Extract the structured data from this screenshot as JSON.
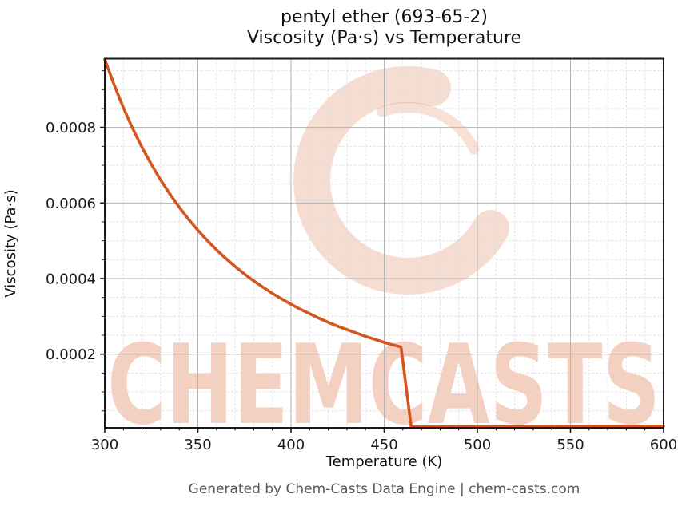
{
  "figure": {
    "title_line1": "pentyl ether (693-65-2)",
    "title_line2": "Viscosity (Pa·s) vs Temperature",
    "footer": "Generated by Chem-Casts Data Engine | chem-casts.com"
  },
  "watermark": {
    "text": "CHEMCASTS",
    "color": "#d4551e"
  },
  "chart_data": {
    "type": "line",
    "title": "pentyl ether (693-65-2) — Viscosity (Pa·s) vs Temperature",
    "xlabel": "Temperature (K)",
    "ylabel": "Viscosity (Pa·s)",
    "xlim": [
      300,
      600
    ],
    "ylim": [
      5e-06,
      0.000982
    ],
    "xticks": [
      300,
      350,
      400,
      450,
      500,
      550,
      600
    ],
    "xtick_labels": [
      "300",
      "350",
      "400",
      "450",
      "500",
      "550",
      "600"
    ],
    "yticks": [
      0.0002,
      0.0004,
      0.0006,
      0.0008
    ],
    "ytick_labels": [
      "0.0002",
      "0.0004",
      "0.0006",
      "0.0008"
    ],
    "x_minor_step": 10,
    "y_minor_step": 5e-05,
    "grid": true,
    "legend": false,
    "line_color": "#d4551e",
    "line_width": 3.6,
    "series": [
      {
        "name": "Viscosity (Pa·s)",
        "points": [
          [
            300,
            0.00098
          ],
          [
            305,
            0.000913
          ],
          [
            310,
            0.000852
          ],
          [
            315,
            0.000797
          ],
          [
            320,
            0.000747
          ],
          [
            325,
            0.000702
          ],
          [
            330,
            0.000661
          ],
          [
            335,
            0.000623
          ],
          [
            340,
            0.000589
          ],
          [
            345,
            0.000557
          ],
          [
            350,
            0.000528
          ],
          [
            355,
            0.000501
          ],
          [
            360,
            0.000476
          ],
          [
            365,
            0.000453
          ],
          [
            370,
            0.000432
          ],
          [
            375,
            0.000412
          ],
          [
            380,
            0.000394
          ],
          [
            385,
            0.000377
          ],
          [
            390,
            0.000361
          ],
          [
            395,
            0.000346
          ],
          [
            400,
            0.000332
          ],
          [
            405,
            0.000319
          ],
          [
            410,
            0.000307
          ],
          [
            415,
            0.000295
          ],
          [
            420,
            0.000284
          ],
          [
            425,
            0.000274
          ],
          [
            430,
            0.000265
          ],
          [
            435,
            0.000256
          ],
          [
            440,
            0.000247
          ],
          [
            445,
            0.000239
          ],
          [
            450,
            0.000231
          ],
          [
            455,
            0.000224
          ],
          [
            459,
            0.000219
          ],
          [
            464.5,
            7.5e-06
          ],
          [
            470,
            7.6e-06
          ],
          [
            480,
            7.8e-06
          ],
          [
            500,
            8.1e-06
          ],
          [
            520,
            8.4e-06
          ],
          [
            540,
            8.7e-06
          ],
          [
            560,
            9e-06
          ],
          [
            580,
            9.3e-06
          ],
          [
            600,
            9.6e-06
          ]
        ]
      }
    ]
  }
}
